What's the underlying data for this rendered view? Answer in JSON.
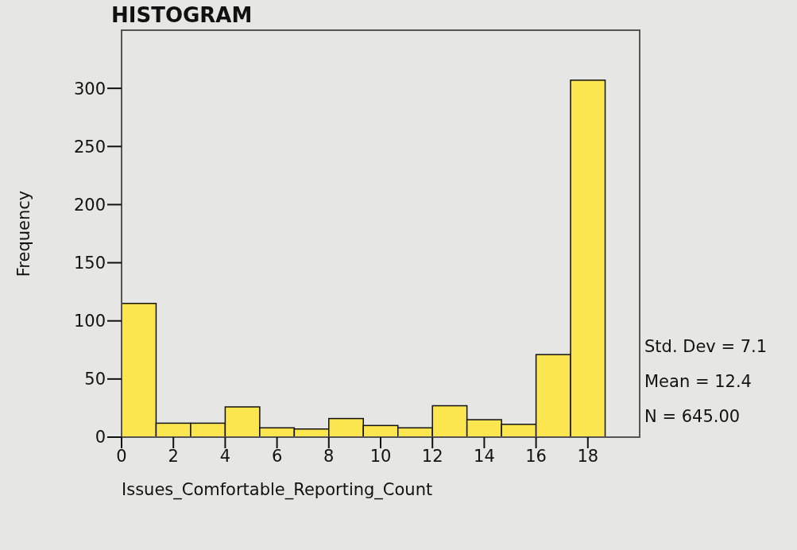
{
  "chart_data": {
    "type": "histogram",
    "title": "HISTOGRAM",
    "xlabel": "Issues_Comfortable_Reporting_Count",
    "ylabel": "Frequency",
    "bins": [
      0,
      1.333,
      2.667,
      4,
      5.333,
      6.667,
      8,
      9.333,
      10.667,
      12,
      13.333,
      14.667,
      16,
      17.333,
      18.667
    ],
    "values": [
      115,
      12,
      12,
      26,
      8,
      7,
      16,
      10,
      8,
      27,
      15,
      11,
      71,
      307
    ],
    "color": "#fce650",
    "xlim": [
      0,
      20
    ],
    "xticks": [
      0,
      2,
      4,
      6,
      8,
      10,
      12,
      14,
      16,
      18
    ],
    "ylim": [
      0,
      350
    ],
    "yticks": [
      0,
      50,
      100,
      150,
      200,
      250,
      300
    ],
    "annotations": [
      "Std. Dev = 7.1",
      "Mean = 12.4",
      "N = 645.00"
    ]
  }
}
